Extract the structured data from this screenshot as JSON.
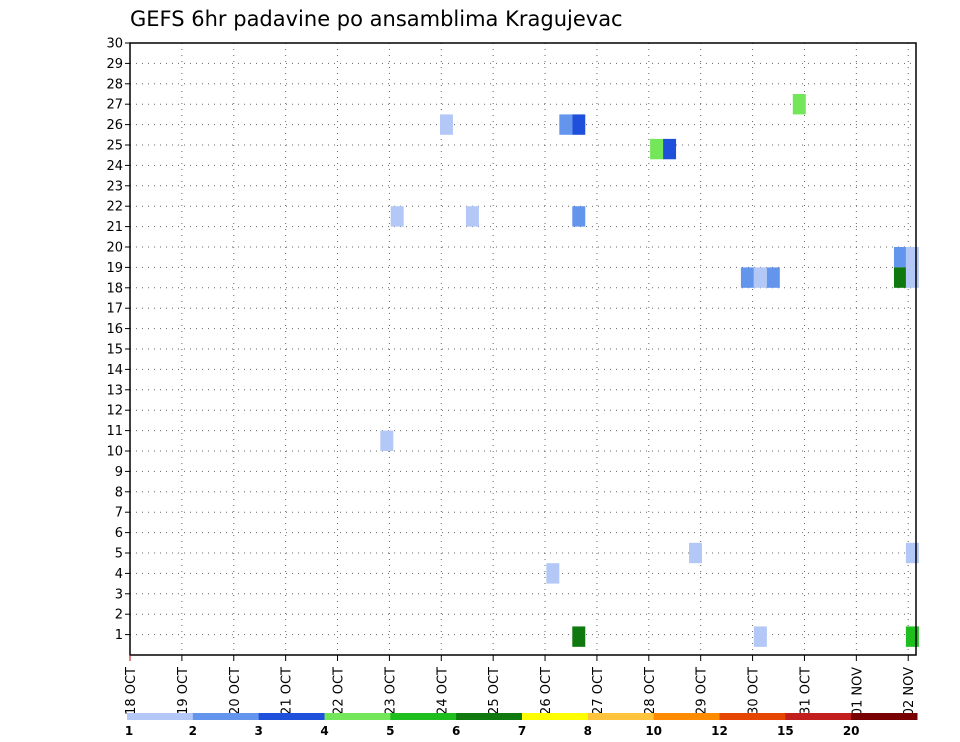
{
  "chart_data": {
    "type": "heatmap",
    "title": "GEFS 6hr padavine po ansamblima Kragujevac",
    "xlabel": "",
    "ylabel": "",
    "x_tick_labels": [
      "18 OCT",
      "19 OCT",
      "20 OCT",
      "21 OCT",
      "22 OCT",
      "23 OCT",
      "24 OCT",
      "25 OCT",
      "26 OCT",
      "27 OCT",
      "28 OCT",
      "29 OCT",
      "30 OCT",
      "31 OCT",
      "01 NOV",
      "02 NOV"
    ],
    "y_tick_labels": [
      "1",
      "2",
      "3",
      "4",
      "5",
      "6",
      "7",
      "8",
      "9",
      "10",
      "11",
      "12",
      "13",
      "14",
      "15",
      "16",
      "17",
      "18",
      "19",
      "20",
      "21",
      "22",
      "23",
      "24",
      "25",
      "26",
      "27",
      "28",
      "29",
      "30"
    ],
    "ylim": [
      0,
      30
    ],
    "xlim_days": [
      0,
      15.15
    ],
    "grid": true,
    "colorbar": {
      "levels": [
        "1",
        "2",
        "3",
        "4",
        "5",
        "6",
        "7",
        "8",
        "10",
        "12",
        "15",
        "20"
      ],
      "colors": [
        "#b3c8f7",
        "#6495ed",
        "#1e50dc",
        "#73e65a",
        "#1ebe1e",
        "#0f780f",
        "#ffff00",
        "#ffc33c",
        "#ff8c00",
        "#e64600",
        "#c31e1e",
        "#780000"
      ]
    },
    "cells": [
      {
        "day": 4.95,
        "member": 10.5,
        "level": 1
      },
      {
        "day": 5.15,
        "member": 21.5,
        "level": 1
      },
      {
        "day": 6.1,
        "member": 26,
        "level": 1
      },
      {
        "day": 6.6,
        "member": 21.5,
        "level": 1
      },
      {
        "day": 8.15,
        "member": 4,
        "level": 1
      },
      {
        "day": 8.4,
        "member": 26,
        "level": 2
      },
      {
        "day": 8.65,
        "member": 26,
        "level": 3
      },
      {
        "day": 8.65,
        "member": 21.5,
        "level": 2
      },
      {
        "day": 8.65,
        "member": 0.9,
        "level": 6
      },
      {
        "day": 10.15,
        "member": 24.8,
        "level": 4
      },
      {
        "day": 10.4,
        "member": 24.8,
        "level": 3
      },
      {
        "day": 10.9,
        "member": 5,
        "level": 1
      },
      {
        "day": 11.9,
        "member": 18.5,
        "level": 2
      },
      {
        "day": 12.15,
        "member": 18.5,
        "level": 1
      },
      {
        "day": 12.15,
        "member": 0.9,
        "level": 1
      },
      {
        "day": 12.4,
        "member": 18.5,
        "level": 2
      },
      {
        "day": 12.9,
        "member": 27,
        "level": 4
      },
      {
        "day": 14.85,
        "member": 19.5,
        "level": 2
      },
      {
        "day": 14.85,
        "member": 18.5,
        "level": 6
      },
      {
        "day": 15.08,
        "member": 19.5,
        "level": 1
      },
      {
        "day": 15.08,
        "member": 18.5,
        "level": 1
      },
      {
        "day": 15.08,
        "member": 5,
        "level": 1
      },
      {
        "day": 15.08,
        "member": 0.9,
        "level": 5
      }
    ]
  }
}
